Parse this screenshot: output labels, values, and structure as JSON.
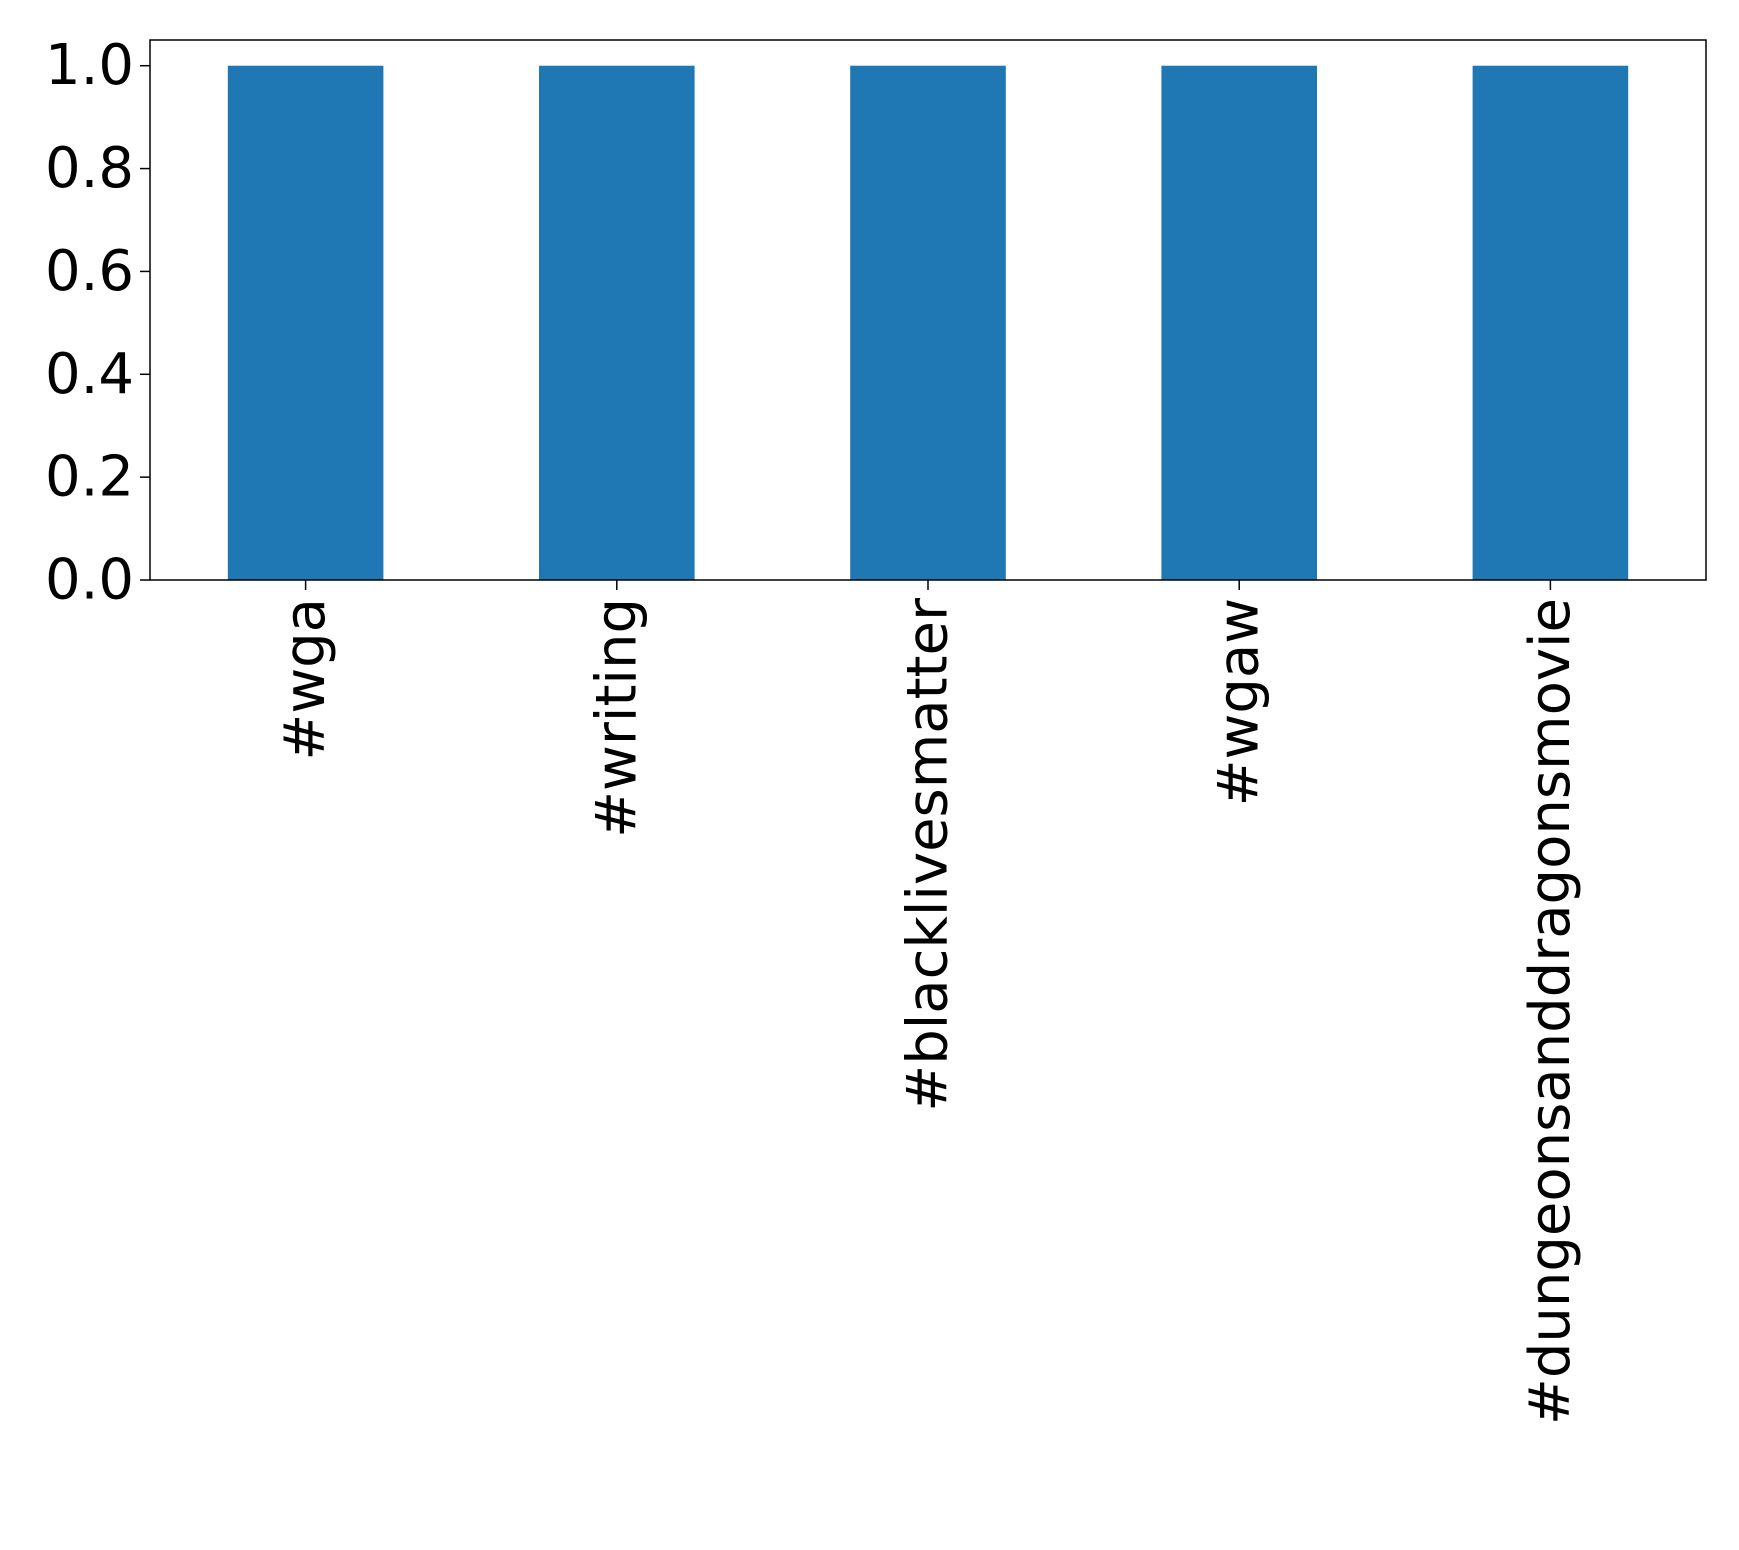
{
  "chart_data": {
    "type": "bar",
    "categories": [
      "#wga",
      "#writing",
      "#blacklivesmatter",
      "#wgaw",
      "#dungeonsanddragonsmovie"
    ],
    "values": [
      1.0,
      1.0,
      1.0,
      1.0,
      1.0
    ],
    "yticks": [
      "0.0",
      "0.2",
      "0.4",
      "0.6",
      "0.8",
      "1.0"
    ],
    "ylim": [
      0,
      1.05
    ],
    "grid": false,
    "bar_color": "#1f77b4"
  }
}
